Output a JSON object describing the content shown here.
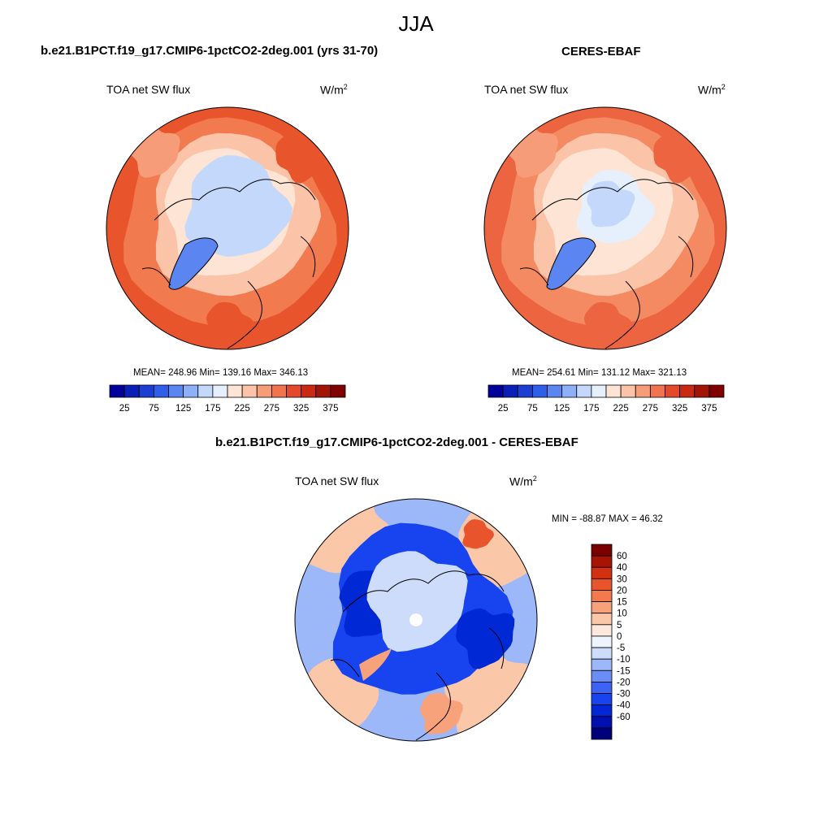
{
  "figure": {
    "title": "JJA"
  },
  "panels": {
    "model": {
      "title": "b.e21.B1PCT.f19_g17.CMIP6-1pctCO2-2deg.001 (yrs 31-70)",
      "variable": "TOA net SW flux",
      "units_base": "W/m",
      "units_exp": "2",
      "stats": "MEAN= 248.96  Min= 139.16  Max= 346.13",
      "mean": 248.96,
      "min": 139.16,
      "max": 346.13
    },
    "obs": {
      "title": "CERES-EBAF",
      "variable": "TOA net SW flux",
      "units_base": "W/m",
      "units_exp": "2",
      "stats": "MEAN= 254.61  Min= 131.12  Max= 321.13",
      "mean": 254.61,
      "min": 131.12,
      "max": 321.13
    },
    "diff": {
      "title": "b.e21.B1PCT.f19_g17.CMIP6-1pctCO2-2deg.001 - CERES-EBAF",
      "variable": "TOA net SW flux",
      "units_base": "W/m",
      "units_exp": "2",
      "stats": "MIN = -88.87 MAX =  46.32",
      "min": -88.87,
      "max": 46.32
    }
  },
  "colorbars": {
    "absolute": {
      "colors": [
        "#00009a",
        "#0a1fb5",
        "#1c3ed1",
        "#2f5ee8",
        "#5b86f2",
        "#8eb0f7",
        "#c3d8fb",
        "#e6f0fd",
        "#fde4d4",
        "#fbc3a7",
        "#f79c78",
        "#f2744f",
        "#e44a2a",
        "#c82a12",
        "#a11506",
        "#800000"
      ],
      "tick_labels": [
        "25",
        "75",
        "125",
        "175",
        "225",
        "275",
        "325",
        "375"
      ]
    },
    "difference": {
      "colors": [
        "#00007a",
        "#0010b0",
        "#0028d4",
        "#1744ee",
        "#3d63f4",
        "#6a8ef6",
        "#9db8f8",
        "#cddcfa",
        "#eef4fd",
        "#fde8db",
        "#fbc7a9",
        "#f8a27b",
        "#f27a4f",
        "#e8552c",
        "#d2300f",
        "#a81404",
        "#7a0000"
      ],
      "tick_labels": [
        "-60",
        "-40",
        "-30",
        "-20",
        "-15",
        "-10",
        "-5",
        "0",
        "5",
        "10",
        "15",
        "20",
        "30",
        "40",
        "60"
      ]
    }
  },
  "map_palette": {
    "model": {
      "outer": "#e8552c",
      "mid": "#f27a4f",
      "inner": "#fbc3a7",
      "pale": "#fde4d4",
      "ice": "#c3d8fb",
      "ice2": "#e6f0fd",
      "greenland": "#5b86f2",
      "land": "#f79c78"
    },
    "obs": {
      "outer": "#ec6440",
      "mid": "#f48a62",
      "inner": "#fbc3a7",
      "pale": "#fde4d4",
      "ice": "#e6f0fd",
      "ice2": "#c3d8fb",
      "greenland": "#5b86f2",
      "land": "#f79c78"
    },
    "diff": {
      "base": "#9db8f8",
      "deep": "#1744ee",
      "deeper": "#0028d4",
      "pale": "#cddcfa",
      "warm": "#fbc7a9",
      "warm2": "#f8a27b",
      "hot": "#e8552c",
      "white": "#ffffff"
    }
  }
}
